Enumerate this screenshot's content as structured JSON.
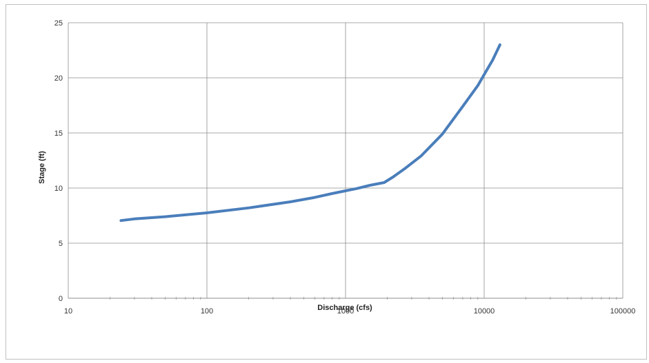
{
  "chart_data": {
    "type": "line",
    "title": "",
    "xlabel": "Discharge (cfs)",
    "ylabel": "Stage (ft)",
    "x_scale": "log",
    "xlim": [
      10,
      100000
    ],
    "ylim": [
      0,
      25
    ],
    "x_ticks": [
      10,
      100,
      1000,
      10000,
      100000
    ],
    "x_tick_labels": [
      "10",
      "100",
      "1000",
      "10000",
      "100000"
    ],
    "y_ticks": [
      0,
      5,
      10,
      15,
      20,
      25
    ],
    "y_tick_labels": [
      "0",
      "5",
      "10",
      "15",
      "20",
      "25"
    ],
    "grid": true,
    "legend": "none",
    "series": [
      {
        "color": "#4a7ebb",
        "x": [
          24,
          30,
          50,
          100,
          200,
          400,
          600,
          800,
          1000,
          1200,
          1500,
          1900,
          2200,
          2700,
          3500,
          5000,
          7000,
          9000,
          10000,
          11500,
          13000
        ],
        "y": [
          7.05,
          7.2,
          7.4,
          7.75,
          8.2,
          8.75,
          9.15,
          9.5,
          9.75,
          9.95,
          10.25,
          10.5,
          11.0,
          11.8,
          12.9,
          14.9,
          17.4,
          19.3,
          20.3,
          21.6,
          23.0
        ]
      }
    ]
  }
}
